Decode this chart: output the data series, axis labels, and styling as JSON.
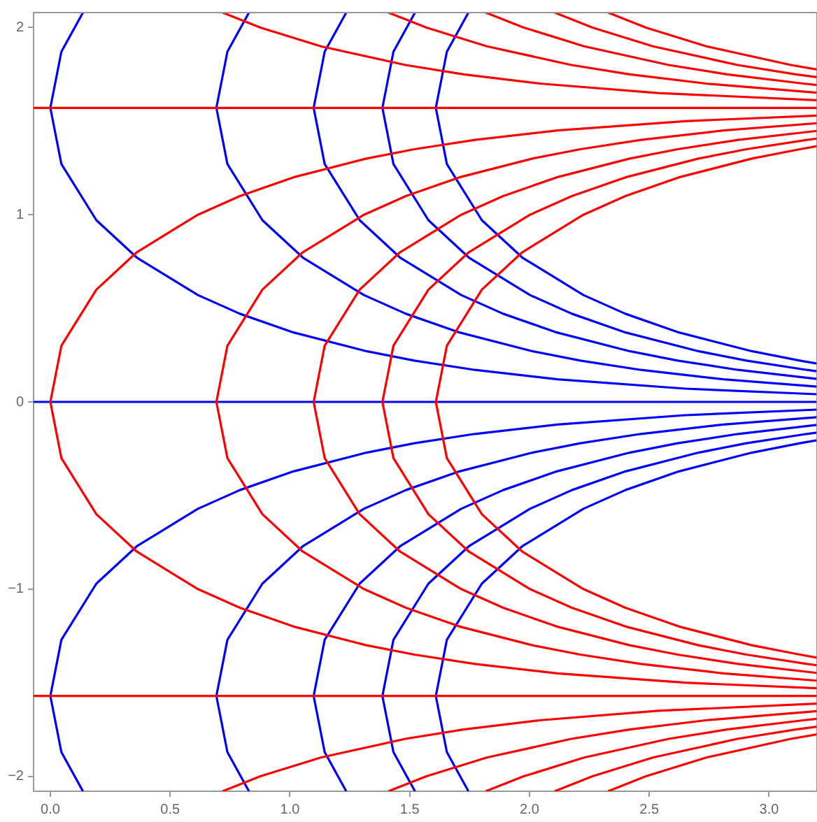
{
  "chart_data": {
    "type": "line",
    "xlim": [
      -0.07,
      3.2
    ],
    "ylim": [
      -2.08,
      2.08
    ],
    "xticks": [
      {
        "value": 0,
        "label": "0.0"
      },
      {
        "value": 0.5,
        "label": "0.5"
      },
      {
        "value": 1,
        "label": "1.0"
      },
      {
        "value": 1.5,
        "label": "1.5"
      },
      {
        "value": 2,
        "label": "2.0"
      },
      {
        "value": 2.5,
        "label": "2.5"
      },
      {
        "value": 3,
        "label": "3.0"
      }
    ],
    "yticks": [
      {
        "value": -2,
        "label": "−2"
      },
      {
        "value": -1,
        "label": "−1"
      },
      0,
      1,
      2
    ],
    "series": [
      {
        "color": "#ff0000",
        "x": [
          -0.07,
          3.2
        ],
        "values": [
          1.571,
          1.571
        ]
      },
      {
        "color": "#ff0000",
        "x": [
          -0.07,
          3.2
        ],
        "values": [
          -1.571,
          -1.571
        ]
      },
      {
        "color": "#ff0000",
        "x": [
          3.2,
          2.649,
          2.116,
          1.772,
          1.519,
          1.319,
          1.015,
          0.791,
          0.616,
          0.361,
          0.192,
          0.046,
          0,
          0.046,
          0.192,
          0.361,
          0.616,
          0.791,
          1.015,
          1.319,
          1.519,
          1.772,
          2.116,
          2.649,
          3.2
        ],
        "values": [
          -1.53,
          -1.5,
          -1.45,
          -1.4,
          -1.35,
          -1.3,
          -1.2,
          -1.1,
          -1,
          -0.8,
          -0.6,
          -0.3,
          0,
          0.3,
          0.6,
          0.8,
          1,
          1.1,
          1.2,
          1.3,
          1.35,
          1.4,
          1.45,
          1.5,
          1.53
        ]
      },
      {
        "color": "#ff0000",
        "x": [
          3.2,
          2.809,
          2.465,
          2.212,
          2.012,
          1.708,
          1.484,
          1.309,
          1.054,
          0.885,
          0.739,
          0.693,
          0.739,
          0.885,
          1.054,
          1.309,
          1.484,
          1.708,
          2.012,
          2.212,
          2.465,
          2.809,
          3.2
        ],
        "values": [
          -1.489,
          -1.45,
          -1.4,
          -1.35,
          -1.3,
          -1.2,
          -1.1,
          -1,
          -0.8,
          -0.6,
          -0.3,
          0,
          0.3,
          0.6,
          0.8,
          1,
          1.1,
          1.2,
          1.3,
          1.35,
          1.4,
          1.45,
          1.489
        ]
      },
      {
        "color": "#ff0000",
        "x": [
          3.2,
          2.871,
          2.618,
          2.418,
          2.114,
          1.89,
          1.715,
          1.46,
          1.291,
          1.145,
          1.099,
          1.145,
          1.291,
          1.46,
          1.715,
          1.89,
          2.114,
          2.418,
          2.618,
          2.871,
          3.2
        ],
        "values": [
          -1.448,
          -1.4,
          -1.35,
          -1.3,
          -1.2,
          -1.1,
          -1,
          -0.8,
          -0.6,
          -0.3,
          0,
          0.3,
          0.6,
          0.8,
          1,
          1.1,
          1.2,
          1.3,
          1.35,
          1.4,
          1.448
        ]
      },
      {
        "color": "#ff0000",
        "x": [
          3.2,
          3.158,
          2.905,
          2.705,
          2.401,
          2.177,
          2.002,
          1.747,
          1.578,
          1.432,
          1.386,
          1.432,
          1.578,
          1.747,
          2.002,
          2.177,
          2.401,
          2.705,
          2.905,
          3.158,
          3.2
        ],
        "values": [
          -1.407,
          -1.4,
          -1.35,
          -1.3,
          -1.2,
          -1.1,
          -1,
          -0.8,
          -0.6,
          -0.3,
          0,
          0.3,
          0.6,
          0.8,
          1,
          1.1,
          1.2,
          1.3,
          1.35,
          1.4,
          1.407
        ]
      },
      {
        "color": "#ff0000",
        "x": [
          3.2,
          3.128,
          2.928,
          2.624,
          2.4,
          2.225,
          1.97,
          1.801,
          1.655,
          1.609,
          1.655,
          1.801,
          1.97,
          2.225,
          2.4,
          2.624,
          2.928,
          3.128,
          3.2
        ],
        "values": [
          -1.366,
          -1.35,
          -1.3,
          -1.2,
          -1.1,
          -1,
          -0.8,
          -0.6,
          -0.3,
          0,
          0.3,
          0.6,
          0.8,
          1,
          1.1,
          1.2,
          1.3,
          1.35,
          1.366
        ]
      },
      {
        "color": "#ff0000",
        "x": [
          0.719,
          0.877,
          1.129,
          1.482,
          1.725,
          2.05,
          2.537,
          3.2
        ],
        "values": [
          2.08,
          2,
          1.9,
          1.8,
          1.75,
          1.7,
          1.65,
          1.612
        ]
      },
      {
        "color": "#ff0000",
        "x": [
          1.411,
          1.57,
          1.822,
          2.175,
          2.418,
          2.742,
          3.2
        ],
        "values": [
          2.08,
          2,
          1.9,
          1.8,
          1.75,
          1.7,
          1.652
        ]
      },
      {
        "color": "#ff0000",
        "x": [
          1.817,
          1.976,
          2.228,
          2.581,
          2.824,
          3.148,
          3.2
        ],
        "values": [
          2.08,
          2,
          1.9,
          1.8,
          1.75,
          1.7,
          1.693
        ]
      },
      {
        "color": "#ff0000",
        "x": [
          2.105,
          2.263,
          2.515,
          2.868,
          3.111,
          3.2
        ],
        "values": [
          2.08,
          2,
          1.9,
          1.8,
          1.75,
          1.735
        ]
      },
      {
        "color": "#ff0000",
        "x": [
          2.328,
          2.486,
          2.738,
          3.091,
          3.2
        ],
        "values": [
          2.08,
          2,
          1.9,
          1.8,
          1.776
        ]
      },
      {
        "color": "#ff0000",
        "x": [
          0.719,
          0.877,
          1.129,
          1.482,
          1.725,
          2.05,
          2.537,
          3.2
        ],
        "values": [
          -2.08,
          -2,
          -1.9,
          -1.8,
          -1.75,
          -1.7,
          -1.65,
          -1.612
        ]
      },
      {
        "color": "#ff0000",
        "x": [
          1.411,
          1.57,
          1.822,
          2.175,
          2.418,
          2.742,
          3.2
        ],
        "values": [
          -2.08,
          -2,
          -1.9,
          -1.8,
          -1.75,
          -1.7,
          -1.652
        ]
      },
      {
        "color": "#ff0000",
        "x": [
          1.817,
          1.976,
          2.228,
          2.581,
          2.824,
          3.148,
          3.2
        ],
        "values": [
          -2.08,
          -2,
          -1.9,
          -1.8,
          -1.75,
          -1.7,
          -1.693
        ]
      },
      {
        "color": "#ff0000",
        "x": [
          2.105,
          2.263,
          2.515,
          2.868,
          3.111,
          3.2
        ],
        "values": [
          -2.08,
          -2,
          -1.9,
          -1.8,
          -1.75,
          -1.735
        ]
      },
      {
        "color": "#ff0000",
        "x": [
          2.328,
          2.486,
          2.738,
          3.091,
          3.2
        ],
        "values": [
          -2.08,
          -2,
          -1.9,
          -1.8,
          -1.776
        ]
      },
      {
        "color": "#0000ff",
        "x": [
          -0.07,
          3.2
        ],
        "values": [
          0,
          0
        ]
      },
      {
        "color": "#0000ff",
        "x": [
          0.136,
          0.046,
          0,
          0.046,
          0.192,
          0.361,
          0.616,
          0.791,
          1.015,
          1.319,
          1.519,
          1.772,
          2.116,
          2.649,
          3.2
        ],
        "values": [
          2.08,
          1.871,
          1.571,
          1.271,
          0.971,
          0.771,
          0.571,
          0.471,
          0.371,
          0.271,
          0.221,
          0.171,
          0.121,
          0.071,
          0.041
        ]
      },
      {
        "color": "#0000ff",
        "x": [
          0.829,
          0.739,
          0.693,
          0.739,
          0.885,
          1.054,
          1.309,
          1.484,
          1.708,
          2.012,
          2.212,
          2.465,
          2.809,
          3.2
        ],
        "values": [
          2.08,
          1.871,
          1.571,
          1.271,
          0.971,
          0.771,
          0.571,
          0.471,
          0.371,
          0.271,
          0.221,
          0.171,
          0.121,
          0.082
        ]
      },
      {
        "color": "#0000ff",
        "x": [
          1.235,
          1.145,
          1.099,
          1.145,
          1.291,
          1.46,
          1.715,
          1.89,
          2.114,
          2.418,
          2.618,
          2.871,
          3.2
        ],
        "values": [
          2.08,
          1.871,
          1.571,
          1.271,
          0.971,
          0.771,
          0.571,
          0.471,
          0.371,
          0.271,
          0.221,
          0.171,
          0.123
        ]
      },
      {
        "color": "#0000ff",
        "x": [
          1.522,
          1.432,
          1.386,
          1.432,
          1.578,
          1.747,
          2.002,
          2.177,
          2.401,
          2.705,
          2.905,
          3.158,
          3.2
        ],
        "values": [
          2.08,
          1.871,
          1.571,
          1.271,
          0.971,
          0.771,
          0.571,
          0.471,
          0.371,
          0.271,
          0.221,
          0.171,
          0.164
        ]
      },
      {
        "color": "#0000ff",
        "x": [
          1.745,
          1.655,
          1.609,
          1.655,
          1.801,
          1.97,
          2.225,
          2.4,
          2.624,
          2.928,
          3.128,
          3.2
        ],
        "values": [
          2.08,
          1.871,
          1.571,
          1.271,
          0.971,
          0.771,
          0.571,
          0.471,
          0.371,
          0.271,
          0.221,
          0.205
        ]
      },
      {
        "color": "#0000ff",
        "x": [
          0.136,
          0.046,
          0,
          0.046,
          0.192,
          0.361,
          0.616,
          0.791,
          1.015,
          1.319,
          1.519,
          1.772,
          2.116,
          2.649,
          3.2
        ],
        "values": [
          -2.08,
          -1.871,
          -1.571,
          -1.271,
          -0.971,
          -0.771,
          -0.571,
          -0.471,
          -0.371,
          -0.271,
          -0.221,
          -0.171,
          -0.121,
          -0.071,
          -0.041
        ]
      },
      {
        "color": "#0000ff",
        "x": [
          0.829,
          0.739,
          0.693,
          0.739,
          0.885,
          1.054,
          1.309,
          1.484,
          1.708,
          2.012,
          2.212,
          2.465,
          2.809,
          3.2
        ],
        "values": [
          -2.08,
          -1.871,
          -1.571,
          -1.271,
          -0.971,
          -0.771,
          -0.571,
          -0.471,
          -0.371,
          -0.271,
          -0.221,
          -0.171,
          -0.121,
          -0.082
        ]
      },
      {
        "color": "#0000ff",
        "x": [
          1.235,
          1.145,
          1.099,
          1.145,
          1.291,
          1.46,
          1.715,
          1.89,
          2.114,
          2.418,
          2.618,
          2.871,
          3.2
        ],
        "values": [
          -2.08,
          -1.871,
          -1.571,
          -1.271,
          -0.971,
          -0.771,
          -0.571,
          -0.471,
          -0.371,
          -0.271,
          -0.221,
          -0.171,
          -0.123
        ]
      },
      {
        "color": "#0000ff",
        "x": [
          1.522,
          1.432,
          1.386,
          1.432,
          1.578,
          1.747,
          2.002,
          2.177,
          2.401,
          2.705,
          2.905,
          3.158,
          3.2
        ],
        "values": [
          -2.08,
          -1.871,
          -1.571,
          -1.271,
          -0.971,
          -0.771,
          -0.571,
          -0.471,
          -0.371,
          -0.271,
          -0.221,
          -0.171,
          -0.164
        ]
      },
      {
        "color": "#0000ff",
        "x": [
          1.745,
          1.655,
          1.609,
          1.655,
          1.801,
          1.97,
          2.225,
          2.4,
          2.624,
          2.928,
          3.128,
          3.2
        ],
        "values": [
          -2.08,
          -1.871,
          -1.571,
          -1.271,
          -0.971,
          -0.771,
          -0.571,
          -0.471,
          -0.371,
          -0.271,
          -0.221,
          -0.205
        ]
      }
    ]
  }
}
